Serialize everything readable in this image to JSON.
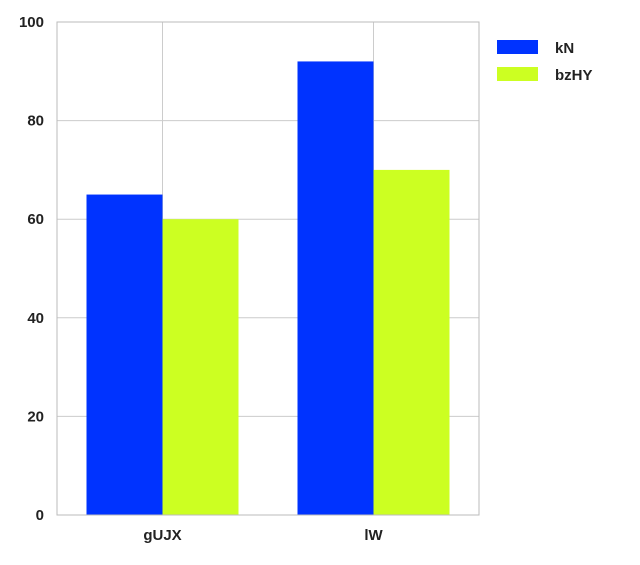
{
  "chart_data": {
    "type": "bar",
    "categories": [
      "gUJX",
      "lW"
    ],
    "series": [
      {
        "name": "kN",
        "values": [
          65,
          92
        ],
        "color": "#0033FF"
      },
      {
        "name": "bzHY",
        "values": [
          60,
          70
        ],
        "color": "#CCFF22"
      }
    ],
    "ylim": [
      0,
      100
    ],
    "yticks": [
      0,
      20,
      40,
      60,
      80,
      100
    ],
    "grid": true,
    "legend_position": "top-right, outside plot"
  }
}
